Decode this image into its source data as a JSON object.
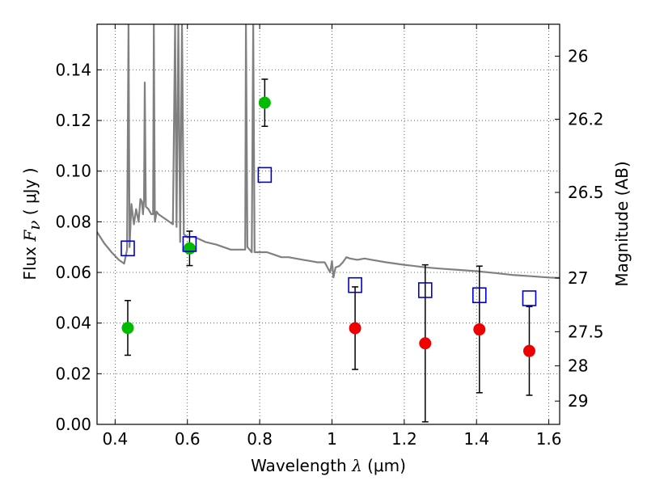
{
  "chart_data": {
    "type": "scatter",
    "xlabel_prefix": "Wavelength",
    "xlabel_symbol": "λ",
    "xlabel_unit": "(μm)",
    "ylabel_prefix": "Flux",
    "ylabel_symbol": "F",
    "ylabel_subscript": "ν",
    "ylabel_unit": "( μJy )",
    "y2label": "Magnitude (AB)",
    "xlim": [
      0.35,
      1.63
    ],
    "ylim": [
      0.0,
      0.158
    ],
    "grid": true,
    "x_ticks": [
      {
        "value": 0.4,
        "label": "0.4"
      },
      {
        "value": 0.6,
        "label": "0.6"
      },
      {
        "value": 0.8,
        "label": "0.8"
      },
      {
        "value": 1.0,
        "label": "1"
      },
      {
        "value": 1.2,
        "label": "1.2"
      },
      {
        "value": 1.4,
        "label": "1.4"
      },
      {
        "value": 1.6,
        "label": "1.6"
      }
    ],
    "y_ticks": [
      {
        "value": 0.0,
        "label": "0.00"
      },
      {
        "value": 0.02,
        "label": "0.02"
      },
      {
        "value": 0.04,
        "label": "0.04"
      },
      {
        "value": 0.06,
        "label": "0.06"
      },
      {
        "value": 0.08,
        "label": "0.08"
      },
      {
        "value": 0.1,
        "label": "0.10"
      },
      {
        "value": 0.12,
        "label": "0.12"
      },
      {
        "value": 0.14,
        "label": "0.14"
      }
    ],
    "y2_ticks": [
      {
        "flux": 0.1454,
        "label": "26"
      },
      {
        "flux": 0.1205,
        "label": "26.2"
      },
      {
        "flux": 0.0916,
        "label": "26.5"
      },
      {
        "flux": 0.0578,
        "label": "27"
      },
      {
        "flux": 0.0366,
        "label": "27.5"
      },
      {
        "flux": 0.0231,
        "label": "28"
      },
      {
        "flux": 0.0092,
        "label": "29"
      }
    ],
    "series": [
      {
        "marker": "circle",
        "color": "#00bb00",
        "points": [
          {
            "x": 0.435,
            "y": 0.0381,
            "err": 0.0108
          },
          {
            "x": 0.606,
            "y": 0.0695,
            "err": 0.0068
          },
          {
            "x": 0.814,
            "y": 0.127,
            "err": 0.0093
          }
        ]
      },
      {
        "marker": "circle",
        "color": "#ee0000",
        "points": [
          {
            "x": 1.064,
            "y": 0.038,
            "err": 0.0163
          },
          {
            "x": 1.258,
            "y": 0.032,
            "err": 0.031
          },
          {
            "x": 1.408,
            "y": 0.0375,
            "err": 0.025
          },
          {
            "x": 1.546,
            "y": 0.029,
            "err": 0.0175
          }
        ]
      },
      {
        "marker": "open-square",
        "color": "#0000cc",
        "points": [
          {
            "x": 0.435,
            "y": 0.0695
          },
          {
            "x": 0.606,
            "y": 0.0712
          },
          {
            "x": 0.814,
            "y": 0.0985
          },
          {
            "x": 1.064,
            "y": 0.055
          },
          {
            "x": 1.258,
            "y": 0.053
          },
          {
            "x": 1.408,
            "y": 0.051
          },
          {
            "x": 1.546,
            "y": 0.0498
          }
        ]
      },
      {
        "type": "line",
        "color": "#808080",
        "points": [
          [
            0.35,
            0.076
          ],
          [
            0.37,
            0.0715
          ],
          [
            0.39,
            0.068
          ],
          [
            0.41,
            0.065
          ],
          [
            0.425,
            0.0635
          ],
          [
            0.433,
            0.069
          ],
          [
            0.437,
            0.158
          ],
          [
            0.44,
            0.07
          ],
          [
            0.445,
            0.087
          ],
          [
            0.452,
            0.079
          ],
          [
            0.458,
            0.085
          ],
          [
            0.465,
            0.08
          ],
          [
            0.47,
            0.089
          ],
          [
            0.474,
            0.088
          ],
          [
            0.477,
            0.083
          ],
          [
            0.48,
            0.089
          ],
          [
            0.482,
            0.135
          ],
          [
            0.485,
            0.086
          ],
          [
            0.492,
            0.085
          ],
          [
            0.5,
            0.083
          ],
          [
            0.505,
            0.083
          ],
          [
            0.507,
            0.158
          ],
          [
            0.51,
            0.08
          ],
          [
            0.515,
            0.084
          ],
          [
            0.52,
            0.083
          ],
          [
            0.53,
            0.082
          ],
          [
            0.54,
            0.081
          ],
          [
            0.55,
            0.08
          ],
          [
            0.56,
            0.079
          ],
          [
            0.566,
            0.158
          ],
          [
            0.57,
            0.078
          ],
          [
            0.575,
            0.158
          ],
          [
            0.58,
            0.072
          ],
          [
            0.585,
            0.158
          ],
          [
            0.59,
            0.075
          ],
          [
            0.6,
            0.074
          ],
          [
            0.62,
            0.074
          ],
          [
            0.65,
            0.072
          ],
          [
            0.68,
            0.071
          ],
          [
            0.7,
            0.07
          ],
          [
            0.72,
            0.069
          ],
          [
            0.74,
            0.069
          ],
          [
            0.76,
            0.069
          ],
          [
            0.762,
            0.158
          ],
          [
            0.766,
            0.07
          ],
          [
            0.772,
            0.069
          ],
          [
            0.778,
            0.068
          ],
          [
            0.782,
            0.158
          ],
          [
            0.786,
            0.068
          ],
          [
            0.8,
            0.068
          ],
          [
            0.82,
            0.068
          ],
          [
            0.84,
            0.067
          ],
          [
            0.86,
            0.066
          ],
          [
            0.88,
            0.066
          ],
          [
            0.9,
            0.0655
          ],
          [
            0.92,
            0.065
          ],
          [
            0.94,
            0.0645
          ],
          [
            0.96,
            0.064
          ],
          [
            0.98,
            0.064
          ],
          [
            0.995,
            0.06
          ],
          [
            1.0,
            0.0645
          ],
          [
            1.004,
            0.058
          ],
          [
            1.01,
            0.062
          ],
          [
            1.02,
            0.0625
          ],
          [
            1.03,
            0.064
          ],
          [
            1.04,
            0.066
          ],
          [
            1.05,
            0.0655
          ],
          [
            1.07,
            0.065
          ],
          [
            1.09,
            0.0655
          ],
          [
            1.11,
            0.065
          ],
          [
            1.15,
            0.064
          ],
          [
            1.2,
            0.063
          ],
          [
            1.26,
            0.062
          ],
          [
            1.3,
            0.0615
          ],
          [
            1.35,
            0.061
          ],
          [
            1.4,
            0.0605
          ],
          [
            1.45,
            0.0598
          ],
          [
            1.5,
            0.059
          ],
          [
            1.55,
            0.0585
          ],
          [
            1.6,
            0.058
          ],
          [
            1.63,
            0.0578
          ]
        ]
      }
    ]
  }
}
